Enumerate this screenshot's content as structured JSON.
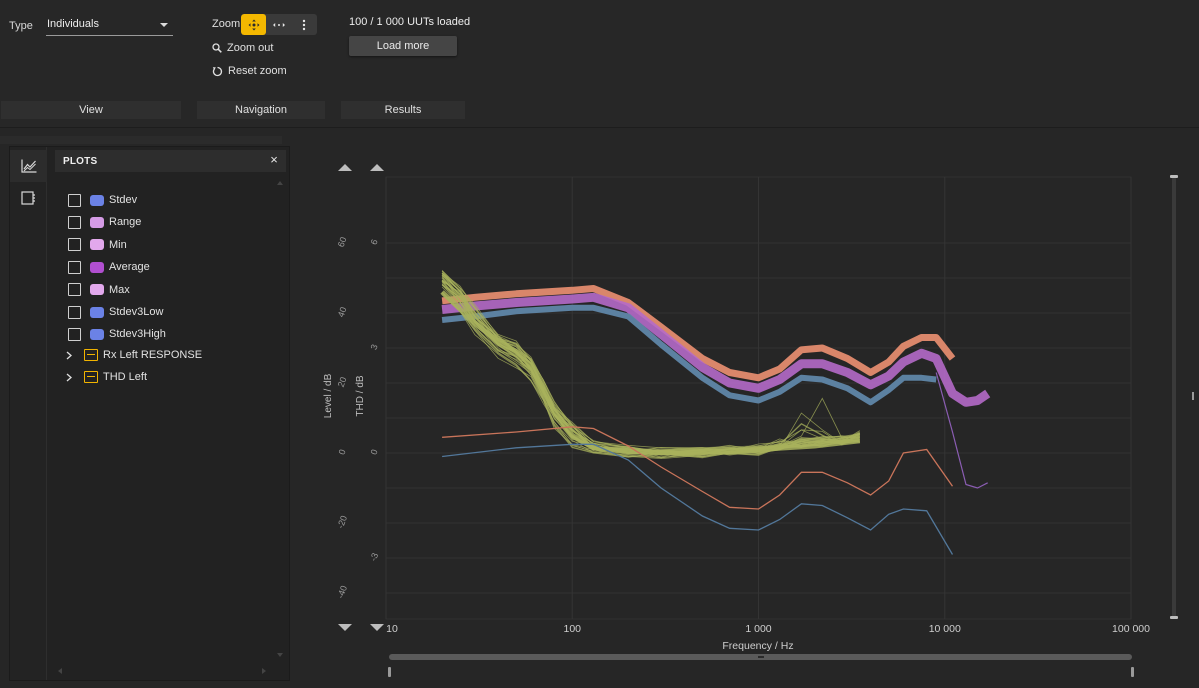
{
  "toolbar": {
    "type_label": "Type",
    "type_value": "Individuals",
    "zoom_label": "Zoom",
    "zoom_out": "Zoom out",
    "reset_zoom": "Reset zoom",
    "loaded_text": "100 / 1 000 UUTs loaded",
    "load_more": "Load more",
    "sections": [
      "View",
      "Navigation",
      "Results"
    ],
    "zoom_buttons": [
      "pan-icon",
      "horizontal-zoom-icon",
      "more-vertical-icon"
    ]
  },
  "panel": {
    "title": "PLOTS",
    "close": "×",
    "items": [
      {
        "label": "Stdev",
        "color": "#6b82e6"
      },
      {
        "label": "Range",
        "color": "#d59be6"
      },
      {
        "label": "Min",
        "color": "#e2a8ec"
      },
      {
        "label": "Average",
        "color": "#b14fd0"
      },
      {
        "label": "Max",
        "color": "#e2a8ec"
      },
      {
        "label": "Stdev3Low",
        "color": "#6b82e6"
      },
      {
        "label": "Stdev3High",
        "color": "#6b82e6"
      }
    ],
    "groups": [
      "Rx Left RESPONSE",
      "THD Left"
    ]
  },
  "chart_data": {
    "type": "line",
    "xlabel": "Frequency / Hz",
    "ylabel_left": "Level / dB",
    "ylabel_right": "THD / dB",
    "x_scale": "log",
    "xlim": [
      10,
      100000
    ],
    "x_ticks": [
      "10",
      "100",
      "1 000",
      "10 000",
      "100 000"
    ],
    "level_ticks": [
      "60",
      "40",
      "20",
      "0",
      "-20",
      "-40"
    ],
    "thd_ticks": [
      "6",
      "3",
      "0",
      "-3"
    ],
    "grid": true,
    "series_colors": {
      "response_max": "#e38b6e",
      "response_avg": "#b56ac9",
      "response_min": "#5f86a8",
      "thd": "#a8b25c",
      "thd_max": "#c9745a",
      "thd_min": "#52779a"
    }
  }
}
